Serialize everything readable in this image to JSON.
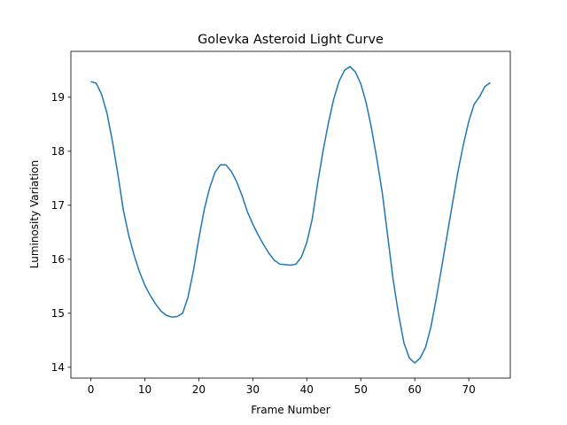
{
  "chart_data": {
    "type": "line",
    "title": "Golevka Asteroid Light Curve",
    "xlabel": "Frame Number",
    "ylabel": "Luminosity Variation",
    "xlim": [
      -3.7,
      77.7
    ],
    "ylim": [
      13.8,
      19.85
    ],
    "xticks": [
      0,
      10,
      20,
      30,
      40,
      50,
      60,
      70
    ],
    "yticks": [
      14,
      15,
      16,
      17,
      18,
      19
    ],
    "grid": false,
    "legend": "none",
    "series": [
      {
        "color": "#1f77b4",
        "x": [
          0,
          1,
          2,
          3,
          4,
          5,
          6,
          7,
          8,
          9,
          10,
          11,
          12,
          13,
          14,
          15,
          16,
          17,
          18,
          19,
          20,
          21,
          22,
          23,
          24,
          25,
          26,
          27,
          28,
          29,
          30,
          31,
          32,
          33,
          34,
          35,
          36,
          37,
          38,
          39,
          40,
          41,
          42,
          43,
          44,
          45,
          46,
          47,
          48,
          49,
          50,
          51,
          52,
          53,
          54,
          55,
          56,
          57,
          58,
          59,
          60,
          61,
          62,
          63,
          64,
          65,
          66,
          67,
          68,
          69,
          70,
          71,
          72,
          73,
          74
        ],
        "y": [
          19.29,
          19.26,
          19.05,
          18.7,
          18.18,
          17.58,
          16.92,
          16.45,
          16.08,
          15.77,
          15.52,
          15.33,
          15.17,
          15.04,
          14.96,
          14.93,
          14.94,
          15.0,
          15.3,
          15.79,
          16.38,
          16.92,
          17.32,
          17.61,
          17.75,
          17.75,
          17.63,
          17.44,
          17.18,
          16.88,
          16.65,
          16.45,
          16.27,
          16.11,
          15.98,
          15.91,
          15.9,
          15.89,
          15.91,
          16.04,
          16.31,
          16.74,
          17.4,
          18.0,
          18.52,
          18.97,
          19.3,
          19.5,
          19.57,
          19.47,
          19.25,
          18.9,
          18.42,
          17.85,
          17.22,
          16.42,
          15.62,
          14.98,
          14.45,
          14.17,
          14.08,
          14.17,
          14.37,
          14.75,
          15.28,
          15.86,
          16.45,
          17.04,
          17.62,
          18.12,
          18.55,
          18.87,
          19.01,
          19.2,
          19.27
        ]
      }
    ]
  }
}
